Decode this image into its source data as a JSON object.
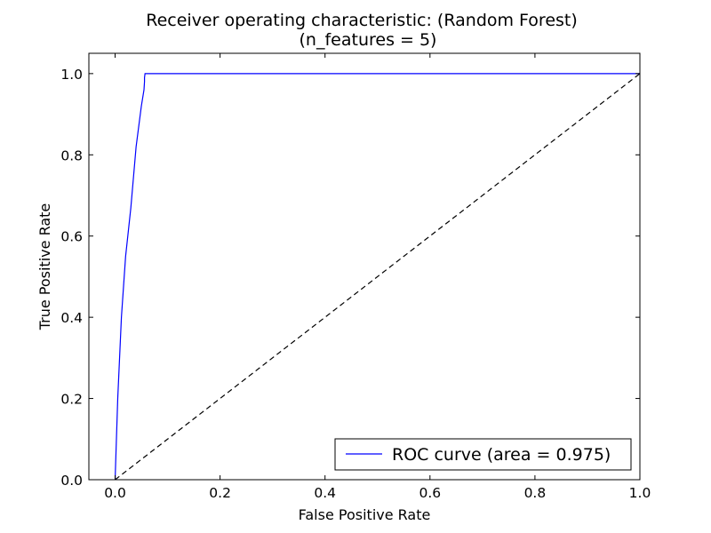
{
  "chart_data": {
    "type": "line",
    "title": "Receiver operating characteristic: (Random Forest)",
    "subtitle": "(n_features = 5)",
    "xlabel": "False Positive Rate",
    "ylabel": "True Positive Rate",
    "xlim": [
      -0.05,
      1.0
    ],
    "ylim": [
      0.0,
      1.05
    ],
    "x_ticks": [
      0.0,
      0.2,
      0.4,
      0.6,
      0.8,
      1.0
    ],
    "y_ticks": [
      0.0,
      0.2,
      0.4,
      0.6,
      0.8,
      1.0
    ],
    "x_tick_labels": [
      "0.0",
      "0.2",
      "0.4",
      "0.6",
      "0.8",
      "1.0"
    ],
    "y_tick_labels": [
      "0.0",
      "0.2",
      "0.4",
      "0.6",
      "0.8",
      "1.0"
    ],
    "grid": false,
    "legend_position": "lower-right",
    "series": [
      {
        "name": "ROC curve (area = 0.975)",
        "color": "#0000ff",
        "style": "solid",
        "x": [
          0.0,
          0.005,
          0.012,
          0.02,
          0.03,
          0.04,
          0.05,
          0.055,
          0.056,
          0.056,
          0.057,
          1.0
        ],
        "y": [
          0.0,
          0.2,
          0.4,
          0.55,
          0.67,
          0.82,
          0.92,
          0.96,
          0.98,
          0.99,
          1.0,
          1.0
        ]
      },
      {
        "color": "#000000",
        "style": "dashed",
        "x": [
          0.0,
          1.0
        ],
        "y": [
          0.0,
          1.0
        ]
      }
    ]
  }
}
